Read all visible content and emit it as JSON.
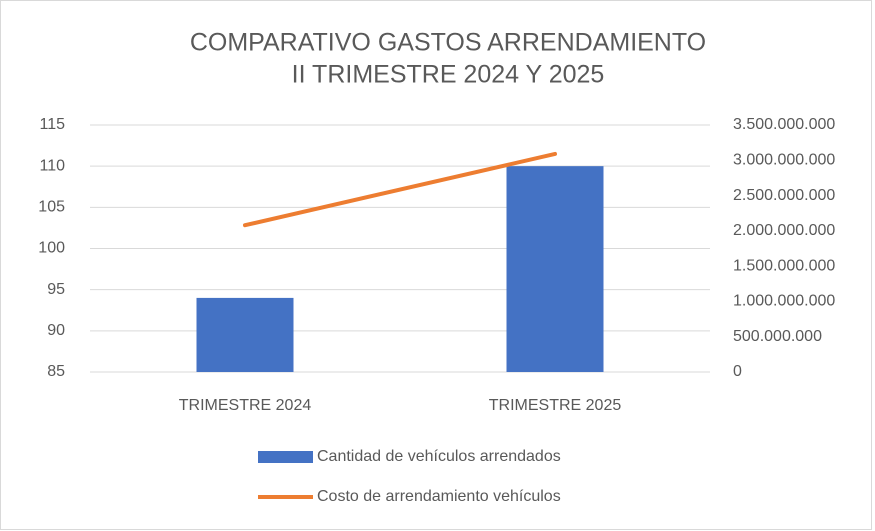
{
  "chart_data": {
    "type": "bar",
    "title": [
      "COMPARATIVO GASTOS ARRENDAMIENTO",
      "II TRIMESTRE 2024 Y 2025"
    ],
    "categories": [
      "TRIMESTRE 2024",
      "TRIMESTRE 2025"
    ],
    "series": [
      {
        "name": "Cantidad de vehículos arrendados",
        "type": "bar",
        "color": "#4472c4",
        "values": [
          94,
          110
        ]
      },
      {
        "name": "Costo de arrendamiento vehículos",
        "type": "line",
        "axis": "y2",
        "color": "#ed7d31",
        "values": [
          2080000000,
          3090000000
        ]
      }
    ],
    "ylim": [
      85,
      115
    ],
    "yticks": [
      85,
      90,
      95,
      100,
      105,
      110,
      115
    ],
    "y2lim": [
      0,
      3500000000
    ],
    "y2ticks": [
      0,
      {
        "value": 500000000,
        "label": "500.000.000"
      },
      {
        "value": 1000000000,
        "label": "1.000.000.000"
      },
      {
        "value": 1500000000,
        "label": "1.500.000.000"
      },
      {
        "value": 2000000000,
        "label": "2.000.000.000"
      },
      {
        "value": 2500000000,
        "label": "2.500.000.000"
      },
      {
        "value": 3000000000,
        "label": "3.000.000.000"
      },
      {
        "value": 3500000000,
        "label": "3.500.000.000"
      }
    ],
    "grid": true,
    "legend": "bottom"
  }
}
